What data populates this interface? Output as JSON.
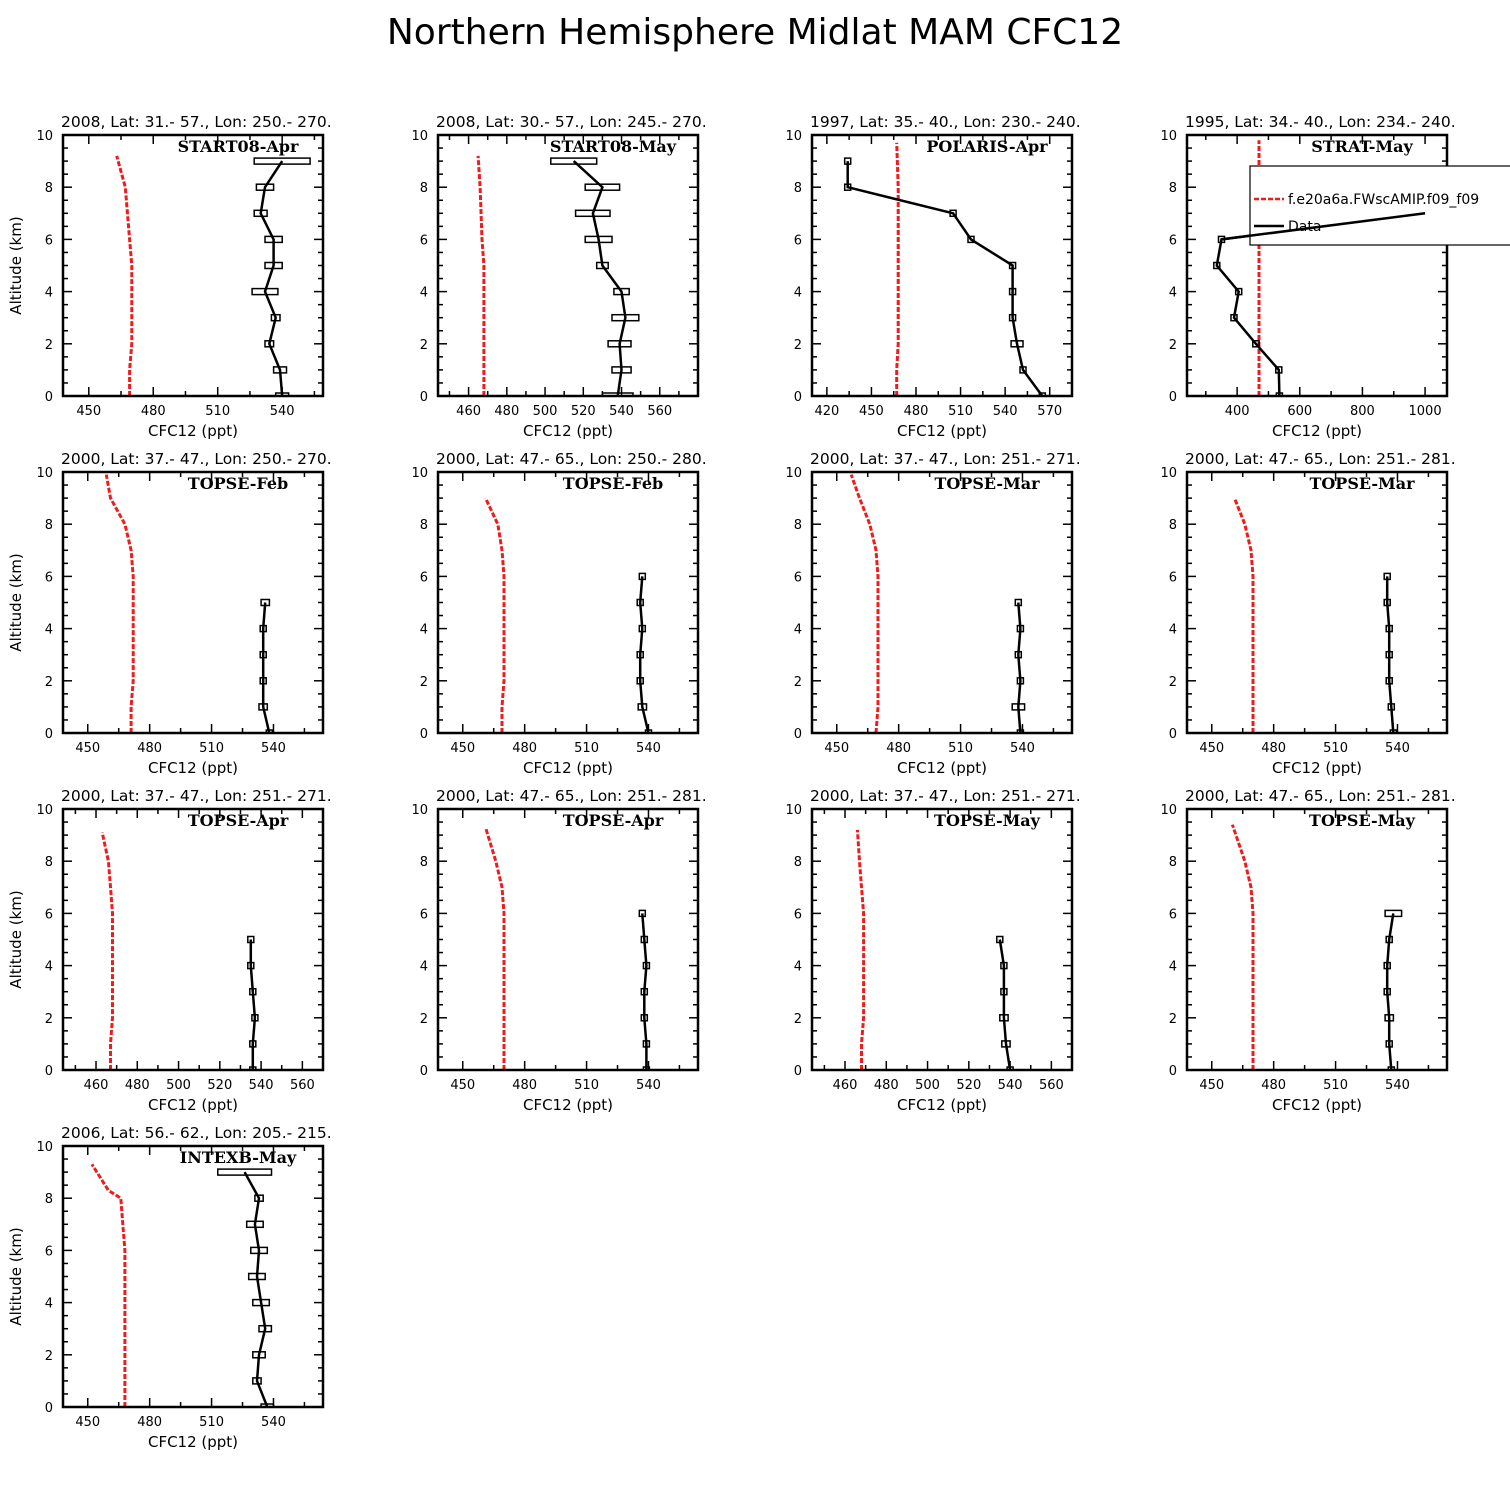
{
  "title": "Northern Hemisphere Midlat MAM CFC12",
  "legend": {
    "model": "f.e20a6a.FWscAMIP.f09_f09",
    "data": "Data"
  },
  "colors": {
    "model": "#ee1c1c",
    "data": "#000000"
  },
  "chart_data": [
    {
      "type": "line",
      "header": "2008, Lat:  31.- 57., Lon: 250.- 270.",
      "campaign": "START08-Apr",
      "xlabel": "CFC12 (ppt)",
      "ylabel": "Altitude (km)",
      "xlim": [
        438,
        559
      ],
      "ylim": [
        0,
        10
      ],
      "xticks": [
        450,
        480,
        510,
        540
      ],
      "yticks": [
        0,
        2,
        4,
        6,
        8,
        10
      ],
      "model": {
        "x": [
          469,
          469,
          470,
          470,
          470,
          470,
          469,
          467,
          463
        ],
        "y": [
          0,
          1,
          2,
          3,
          4,
          5,
          6,
          8,
          9.2
        ]
      },
      "data": {
        "x": [
          540,
          539,
          534,
          537,
          532,
          536,
          536,
          530,
          532,
          540
        ],
        "y": [
          0,
          1,
          2,
          3,
          4,
          5,
          6,
          7,
          8,
          9
        ],
        "err": [
          3,
          3,
          2,
          2,
          6,
          4,
          4,
          3,
          4,
          13
        ]
      }
    },
    {
      "type": "line",
      "header": "2008, Lat:  30.- 57., Lon: 245.- 270.",
      "campaign": "START08-May",
      "xlabel": "CFC12 (ppt)",
      "ylabel": "Altitude (km)",
      "xlim": [
        444,
        580
      ],
      "ylim": [
        0,
        10
      ],
      "xticks": [
        460,
        480,
        500,
        520,
        540,
        560
      ],
      "yticks": [
        0,
        2,
        4,
        6,
        8,
        10
      ],
      "model": {
        "x": [
          468,
          468,
          468,
          468,
          468,
          468,
          467,
          466,
          465
        ],
        "y": [
          0,
          1,
          2,
          3,
          4,
          5,
          6,
          8,
          9.2
        ]
      },
      "data": {
        "x": [
          538,
          540,
          539,
          542,
          540,
          530,
          528,
          525,
          530,
          515
        ],
        "y": [
          0,
          1,
          2,
          3,
          4,
          5,
          6,
          7,
          8,
          9
        ],
        "err": [
          8,
          5,
          6,
          7,
          4,
          3,
          7,
          9,
          9,
          12
        ]
      }
    },
    {
      "type": "line",
      "header": "1997, Lat: 35.- 40., Lon: 230.- 240.",
      "campaign": "POLARIS-Apr",
      "xlabel": "CFC12 (ppt)",
      "ylabel": "Altitude (km)",
      "xlim": [
        410,
        585
      ],
      "ylim": [
        0,
        10
      ],
      "xticks": [
        420,
        450,
        480,
        510,
        540,
        570
      ],
      "yticks": [
        0,
        2,
        4,
        6,
        8,
        10
      ],
      "model": {
        "x": [
          467,
          467,
          468,
          468,
          468,
          468,
          468,
          468,
          467
        ],
        "y": [
          0,
          1,
          2,
          3,
          4,
          5,
          6,
          8,
          9.7
        ]
      },
      "data": {
        "x": [
          565,
          552,
          548,
          545,
          545,
          545,
          517,
          505,
          434,
          434
        ],
        "y": [
          0,
          1,
          2,
          3,
          4,
          5,
          6,
          7,
          8,
          9
        ],
        "err": [
          0,
          0,
          4,
          0,
          0,
          0,
          0,
          0,
          0,
          2
        ]
      }
    },
    {
      "type": "line",
      "header": "1995, Lat: 34.- 40., Lon: 234.- 240.",
      "campaign": "STRAT-May",
      "xlabel": "CFC12 (ppt)",
      "ylabel": "Altitude (km)",
      "xlim": [
        240,
        1070
      ],
      "ylim": [
        0,
        10
      ],
      "xticks": [
        400,
        600,
        800,
        1000
      ],
      "yticks": [
        0,
        2,
        4,
        6,
        8,
        10
      ],
      "model": {
        "x": [
          470,
          470,
          470,
          470,
          470,
          470,
          470,
          470,
          470,
          470
        ],
        "y": [
          0,
          1,
          2,
          3,
          4,
          5,
          6,
          7,
          8,
          9.8
        ]
      },
      "data": {
        "x": [
          535,
          533,
          460,
          390,
          405,
          335,
          350,
          1000
        ],
        "y": [
          0,
          1,
          2,
          3,
          4,
          5,
          6,
          7
        ],
        "err": [
          0,
          0,
          10,
          0,
          0,
          0,
          0,
          0
        ]
      }
    },
    {
      "type": "line",
      "header": "2000, Lat: 37.- 47., Lon: 250.- 270.",
      "campaign": "TOPSE-Feb",
      "xlabel": "CFC12 (ppt)",
      "ylabel": "Altitude (km)",
      "xlim": [
        438,
        564
      ],
      "ylim": [
        0,
        10
      ],
      "xticks": [
        450,
        480,
        510,
        540
      ],
      "yticks": [
        0,
        2,
        4,
        6,
        8,
        10
      ],
      "model": {
        "x": [
          471,
          471,
          472,
          472,
          472,
          472,
          472,
          471,
          468,
          461,
          459
        ],
        "y": [
          0,
          1,
          2,
          3,
          4,
          5,
          6,
          7,
          8,
          9,
          9.9
        ]
      },
      "data": {
        "x": [
          538,
          535,
          535,
          535,
          535,
          536
        ],
        "y": [
          0,
          1,
          2,
          3,
          4,
          5
        ],
        "err": [
          0,
          2,
          1,
          1,
          1,
          2
        ]
      }
    },
    {
      "type": "line",
      "header": "2000, Lat: 47.- 65., Lon: 250.- 280.",
      "campaign": "TOPSE-Feb",
      "xlabel": "CFC12 (ppt)",
      "ylabel": "Altitude (km)",
      "xlim": [
        438,
        564
      ],
      "ylim": [
        0,
        10
      ],
      "xticks": [
        450,
        480,
        510,
        540
      ],
      "yticks": [
        0,
        2,
        4,
        6,
        8,
        10
      ],
      "model": {
        "x": [
          469,
          469,
          470,
          470,
          470,
          470,
          470,
          469,
          467,
          461
        ],
        "y": [
          0,
          1,
          2,
          3,
          4,
          5,
          6,
          7,
          8,
          9
        ]
      },
      "data": {
        "x": [
          540,
          537,
          536,
          536,
          537,
          536,
          537
        ],
        "y": [
          0,
          1,
          2,
          3,
          4,
          5,
          6
        ],
        "err": [
          0,
          2,
          1,
          1,
          1,
          1,
          1
        ]
      }
    },
    {
      "type": "line",
      "header": "2000, Lat: 37.- 47., Lon: 251.- 271.",
      "campaign": "TOPSE-Mar",
      "xlabel": "CFC12 (ppt)",
      "ylabel": "Altitude (km)",
      "xlim": [
        438,
        564
      ],
      "ylim": [
        0,
        10
      ],
      "xticks": [
        450,
        480,
        510,
        540
      ],
      "yticks": [
        0,
        2,
        4,
        6,
        8,
        10
      ],
      "model": {
        "x": [
          469,
          470,
          470,
          470,
          470,
          470,
          470,
          469,
          466,
          461,
          457
        ],
        "y": [
          0,
          1,
          2,
          3,
          4,
          5,
          6,
          7,
          8,
          9,
          9.9
        ]
      },
      "data": {
        "x": [
          539,
          538,
          539,
          538,
          539,
          538
        ],
        "y": [
          0,
          1,
          2,
          3,
          4,
          5
        ],
        "err": [
          0,
          3,
          1,
          1,
          1,
          1
        ]
      }
    },
    {
      "type": "line",
      "header": "2000, Lat: 47.- 65., Lon: 251.- 281.",
      "campaign": "TOPSE-Mar",
      "xlabel": "CFC12 (ppt)",
      "ylabel": "Altitude (km)",
      "xlim": [
        438,
        564
      ],
      "ylim": [
        0,
        10
      ],
      "xticks": [
        450,
        480,
        510,
        540
      ],
      "yticks": [
        0,
        2,
        4,
        6,
        8,
        10
      ],
      "model": {
        "x": [
          470,
          470,
          470,
          470,
          470,
          470,
          470,
          469,
          466,
          461
        ],
        "y": [
          0,
          1,
          2,
          3,
          4,
          5,
          6,
          7,
          8,
          9
        ]
      },
      "data": {
        "x": [
          538,
          537,
          536,
          536,
          536,
          535,
          535
        ],
        "y": [
          0,
          1,
          2,
          3,
          4,
          5,
          6
        ],
        "err": [
          0,
          1,
          1,
          1,
          1,
          1,
          1
        ]
      }
    },
    {
      "type": "line",
      "header": "2000, Lat: 37.- 47., Lon: 251.- 271.",
      "campaign": "TOPSE-Apr",
      "xlabel": "CFC12 (ppt)",
      "ylabel": "Altitude (km)",
      "xlim": [
        444,
        570
      ],
      "ylim": [
        0,
        10
      ],
      "xticks": [
        460,
        480,
        500,
        520,
        540,
        560
      ],
      "yticks": [
        0,
        2,
        4,
        6,
        8,
        10
      ],
      "model": {
        "x": [
          467,
          467,
          468,
          468,
          468,
          468,
          468,
          467,
          466,
          463
        ],
        "y": [
          0,
          1,
          2,
          3,
          4,
          5,
          6,
          7,
          8,
          9.1
        ]
      },
      "data": {
        "x": [
          536,
          536,
          537,
          536,
          535,
          535
        ],
        "y": [
          0,
          1,
          2,
          3,
          4,
          5
        ],
        "err": [
          0,
          1,
          1,
          1,
          1,
          1
        ]
      }
    },
    {
      "type": "line",
      "header": "2000, Lat: 47.- 65., Lon: 251.- 281.",
      "campaign": "TOPSE-Apr",
      "xlabel": "CFC12 (ppt)",
      "ylabel": "Altitude (km)",
      "xlim": [
        438,
        564
      ],
      "ylim": [
        0,
        10
      ],
      "xticks": [
        450,
        480,
        510,
        540
      ],
      "yticks": [
        0,
        2,
        4,
        6,
        8,
        10
      ],
      "model": {
        "x": [
          470,
          470,
          470,
          470,
          470,
          470,
          470,
          469,
          466,
          461
        ],
        "y": [
          0,
          1,
          2,
          3,
          4,
          5,
          6,
          7,
          8,
          9.3
        ]
      },
      "data": {
        "x": [
          539,
          539,
          538,
          538,
          539,
          538,
          537
        ],
        "y": [
          0,
          1,
          2,
          3,
          4,
          5,
          6
        ],
        "err": [
          0,
          1,
          1,
          1,
          1,
          1,
          1
        ]
      }
    },
    {
      "type": "line",
      "header": "2000, Lat: 37.- 47., Lon: 251.- 271.",
      "campaign": "TOPSE-May",
      "xlabel": "CFC12 (ppt)",
      "ylabel": "Altitude (km)",
      "xlim": [
        444,
        570
      ],
      "ylim": [
        0,
        10
      ],
      "xticks": [
        460,
        480,
        500,
        520,
        540,
        560
      ],
      "yticks": [
        0,
        2,
        4,
        6,
        8,
        10
      ],
      "model": {
        "x": [
          468,
          468,
          469,
          469,
          469,
          469,
          469,
          468,
          467,
          466
        ],
        "y": [
          0,
          1,
          2,
          3,
          4,
          5,
          6,
          7,
          8,
          9.2
        ]
      },
      "data": {
        "x": [
          540,
          538,
          537,
          537,
          537,
          535
        ],
        "y": [
          0,
          1,
          2,
          3,
          4,
          5
        ],
        "err": [
          0,
          2,
          2,
          1,
          1,
          1
        ]
      }
    },
    {
      "type": "line",
      "header": "2000, Lat: 47.- 65., Lon: 251.- 281.",
      "campaign": "TOPSE-May",
      "xlabel": "CFC12 (ppt)",
      "ylabel": "Altitude (km)",
      "xlim": [
        438,
        564
      ],
      "ylim": [
        0,
        10
      ],
      "xticks": [
        450,
        480,
        510,
        540
      ],
      "yticks": [
        0,
        2,
        4,
        6,
        8,
        10
      ],
      "model": {
        "x": [
          470,
          470,
          470,
          470,
          470,
          470,
          470,
          469,
          466,
          460
        ],
        "y": [
          0,
          1,
          2,
          3,
          4,
          5,
          6,
          7,
          8,
          9.4
        ]
      },
      "data": {
        "x": [
          537,
          536,
          536,
          535,
          535,
          536,
          538
        ],
        "y": [
          0,
          1,
          2,
          3,
          4,
          5,
          6
        ],
        "err": [
          0,
          1,
          2,
          1,
          1,
          1,
          4
        ]
      }
    },
    {
      "type": "line",
      "header": "2006, Lat: 56.- 62., Lon: 205.- 215.",
      "campaign": "INTEXB-May",
      "xlabel": "CFC12 (ppt)",
      "ylabel": "Altitude (km)",
      "xlim": [
        438,
        564
      ],
      "ylim": [
        0,
        10
      ],
      "xticks": [
        450,
        480,
        510,
        540
      ],
      "yticks": [
        0,
        2,
        4,
        6,
        8,
        10
      ],
      "model": {
        "x": [
          468,
          468,
          468,
          468,
          468,
          468,
          468,
          467,
          466,
          460,
          452
        ],
        "y": [
          0,
          1,
          2,
          3,
          4,
          5,
          6,
          7,
          8,
          8.3,
          9.3
        ]
      },
      "data": {
        "x": [
          537,
          532,
          533,
          536,
          534,
          532,
          533,
          531,
          533,
          526
        ],
        "y": [
          0,
          1,
          2,
          3,
          4,
          5,
          6,
          7,
          8,
          9
        ],
        "err": [
          3,
          2,
          3,
          3,
          4,
          4,
          4,
          4,
          2,
          13
        ]
      }
    }
  ]
}
